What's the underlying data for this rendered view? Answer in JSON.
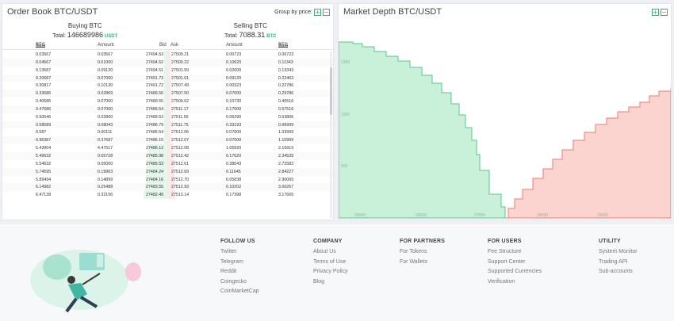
{
  "orderbook": {
    "title": "Order Book BTC/USDT",
    "group_label": "Group by price:",
    "plus": "+",
    "minus": "−",
    "buying": {
      "title": "Buying BTC",
      "total_label": "Total:",
      "total_value": "146689986",
      "total_unit": "USDT"
    },
    "selling": {
      "title": "Selling BTC",
      "total_label": "Total:",
      "total_value": "7088.31",
      "total_unit": "BTC"
    },
    "columns": {
      "sum": "Sum",
      "sum_unit": "BTC",
      "amount": "Amount",
      "bid": "Bid",
      "ask": "Ask",
      "amount2": "Amount",
      "sum2": "Sum",
      "sum2_unit": "BTC"
    },
    "rows": [
      [
        "0.03567",
        "0.03567",
        "27494.53",
        "27500.21",
        "0.00723",
        "0.00723"
      ],
      [
        "0.04567",
        "0.01000",
        "27494.52",
        "27500.22",
        "0.10620",
        "0.11343"
      ],
      [
        "0.13687",
        "0.09120",
        "27494.51",
        "27501.59",
        "0.02000",
        "0.13343"
      ],
      [
        "0.20687",
        "0.07000",
        "27491.73",
        "27501.61",
        "0.09120",
        "0.22463"
      ],
      [
        "0.30817",
        "0.10130",
        "27491.72",
        "27507.49",
        "0.00323",
        "0.22786"
      ],
      [
        "0.33686",
        "0.02869",
        "27489.56",
        "27507.50",
        "0.07000",
        "0.29786"
      ],
      [
        "0.40686",
        "0.07000",
        "27489.55",
        "27509.62",
        "0.10730",
        "0.40516"
      ],
      [
        "0.47686",
        "0.07000",
        "27489.54",
        "27511.17",
        "0.17000",
        "0.57516"
      ],
      [
        "0.50546",
        "0.02860",
        "27489.53",
        "27511.56",
        "0.06290",
        "0.63806"
      ],
      [
        "0.58589",
        "0.08043",
        "27486.79",
        "27511.75",
        "0.33193",
        "0.96999"
      ],
      [
        "0.587",
        "0.00111",
        "27486.54",
        "27512.06",
        "0.07000",
        "1.03999"
      ],
      [
        "0.96387",
        "0.37687",
        "27486.15",
        "27512.07",
        "0.07000",
        "1.10999"
      ],
      [
        "5.43904",
        "4.47517",
        "27486.12",
        "27512.08",
        "1.05920",
        "2.16919"
      ],
      [
        "5.49632",
        "0.05728",
        "27485.98",
        "27512.42",
        "0.17620",
        "2.34539"
      ],
      [
        "5.54632",
        "0.05000",
        "27485.53",
        "27512.61",
        "0.38043",
        "2.72582"
      ],
      [
        "5.74595",
        "0.19963",
        "27484.24",
        "27512.69",
        "0.11645",
        "2.84227"
      ],
      [
        "5.89494",
        "0.14899",
        "27484.16",
        "27512.70",
        "0.05838",
        "2.90065"
      ],
      [
        "6.14982",
        "0.25488",
        "27483.55",
        "27512.93",
        "0.10202",
        "3.00267"
      ],
      [
        "6.47138",
        "0.32156",
        "27482.49",
        "27513.14",
        "0.17398",
        "3.17665"
      ]
    ]
  },
  "depth": {
    "title": "Market Depth BTC/USDT",
    "plus": "+",
    "minus": "−",
    "colors": {
      "bid": "#c9f0d9",
      "bid_line": "#55c98a",
      "ask": "#fbd3cf",
      "ask_line": "#f0796c"
    },
    "y_ticks": [
      "1500",
      "1000",
      "500"
    ],
    "x_ticks": [
      "25000",
      "26000",
      "27000",
      "28000",
      "29000"
    ]
  },
  "footer": {
    "columns": [
      {
        "heading": "FOLLOW US",
        "links": [
          "Twitter",
          "Telegram",
          "Reddit",
          "Coingecko",
          "CoinMarketCap"
        ]
      },
      {
        "heading": "COMPANY",
        "links": [
          "About Us",
          "Terms of Use",
          "Privacy Policy",
          "Blog"
        ]
      },
      {
        "heading": "FOR PARTNERS",
        "links": [
          "For Tokens",
          "For Wallets"
        ]
      },
      {
        "heading": "FOR USERS",
        "links": [
          "Fee Structure",
          "Support Center",
          "Supported Currencies",
          "Verification"
        ]
      },
      {
        "heading": "UTILITY",
        "links": [
          "System Monitor",
          "Trading API",
          "Sub-accounts"
        ]
      }
    ]
  }
}
